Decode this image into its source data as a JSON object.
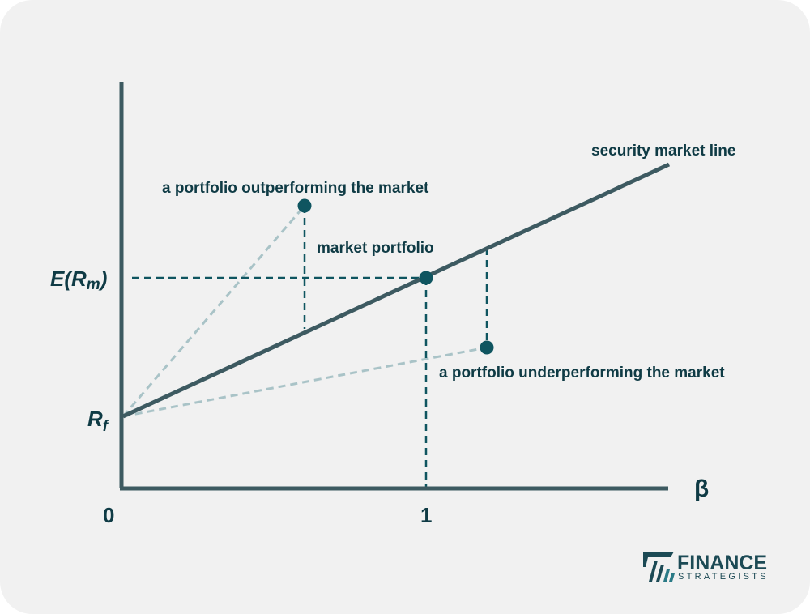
{
  "diagram": {
    "labels": {
      "sml": "security market line",
      "outperform": "a portfolio outperforming the market",
      "market": "market portfolio",
      "underperform": "a portfolio underperforming the market"
    },
    "y_axis": {
      "erm_main": "E(R",
      "erm_sub": "m",
      "erm_close": ")",
      "rf_main": "R",
      "rf_sub": "f"
    },
    "x_axis": {
      "symbol": "β",
      "tick0": "0",
      "tick1": "1"
    }
  },
  "logo": {
    "line1": "FINANCE",
    "line2": "STRATEGISTS"
  },
  "colors": {
    "axis": "#3d5a61",
    "accent": "#0f5560",
    "faint": "#a9c3c7",
    "text": "#0f3b45",
    "background": "#f1f1f1"
  }
}
